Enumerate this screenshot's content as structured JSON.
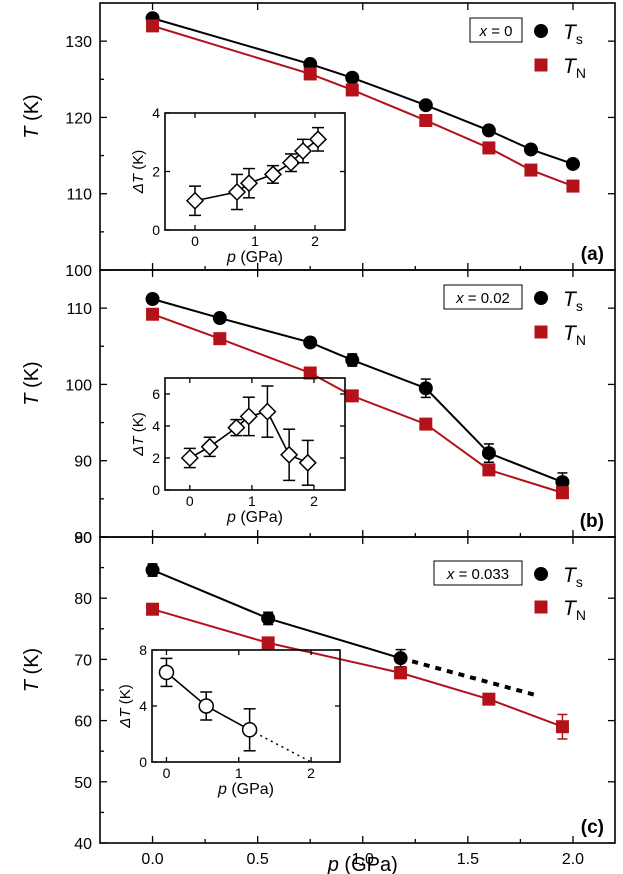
{
  "colors": {
    "ts": "#000000",
    "tn": "#b3121a",
    "tn_line": "#b3121a"
  },
  "axis": {
    "xlabel_var": "p",
    "xlabel_unit": " (GPa)",
    "ylabel_var": "T",
    "ylabel_unit": " (K)",
    "x_ticks": [
      "0.0",
      "0.5",
      "1.0",
      "1.5",
      "2.0"
    ]
  },
  "legend": {
    "ts_main": "T",
    "ts_sub": "s",
    "tn_main": "T",
    "tn_sub": "N"
  },
  "chart_data": [
    {
      "type": "scatter",
      "panel_label": "(a)",
      "composition_var": "x",
      "composition_value": " = 0",
      "xlim": [
        -0.25,
        2.2
      ],
      "ylim": [
        100,
        135
      ],
      "y_ticks": [
        100,
        110,
        120,
        130
      ],
      "series": [
        {
          "name": "Ts",
          "x": [
            0.0,
            0.75,
            0.95,
            1.3,
            1.6,
            1.8,
            2.0
          ],
          "y": [
            133.0,
            127.0,
            125.2,
            121.6,
            118.3,
            115.8,
            113.9
          ]
        },
        {
          "name": "TN",
          "x": [
            0.0,
            0.75,
            0.95,
            1.3,
            1.6,
            1.8,
            2.0
          ],
          "y": [
            132.0,
            125.7,
            123.6,
            119.6,
            116.0,
            113.1,
            111.0
          ]
        }
      ],
      "inset": {
        "xlabel_var": "p",
        "xlabel_unit": " (GPa)",
        "ylabel_var": "ΔT",
        "ylabel_unit": " (K)",
        "xlim": [
          -0.5,
          2.5
        ],
        "ylim": [
          0,
          4
        ],
        "x_ticks": [
          0,
          1,
          2
        ],
        "y_ticks": [
          0,
          2,
          4
        ],
        "x": [
          0.0,
          0.7,
          0.9,
          1.3,
          1.6,
          1.8,
          2.05
        ],
        "y": [
          1.0,
          1.3,
          1.6,
          1.9,
          2.3,
          2.7,
          3.1
        ],
        "err": [
          0.5,
          0.6,
          0.5,
          0.3,
          0.3,
          0.4,
          0.4
        ]
      }
    },
    {
      "type": "scatter",
      "panel_label": "(b)",
      "composition_var": "x",
      "composition_value": " = 0.02",
      "xlim": [
        -0.25,
        2.2
      ],
      "ylim": [
        80,
        115
      ],
      "y_ticks": [
        80,
        90,
        100,
        110
      ],
      "series": [
        {
          "name": "Ts",
          "x": [
            0.0,
            0.32,
            0.75,
            0.95,
            1.3,
            1.6,
            1.95
          ],
          "y": [
            111.2,
            108.7,
            105.5,
            103.2,
            99.5,
            91.0,
            87.2
          ],
          "err": [
            0.5,
            0.5,
            0.6,
            0.8,
            1.2,
            1.2,
            1.2
          ]
        },
        {
          "name": "TN",
          "x": [
            0.0,
            0.32,
            0.75,
            0.95,
            1.3,
            1.6,
            1.95
          ],
          "y": [
            109.2,
            106.0,
            101.5,
            98.5,
            94.8,
            88.8,
            85.8
          ]
        }
      ],
      "inset": {
        "xlabel_var": "p",
        "xlabel_unit": " (GPa)",
        "ylabel_var": "ΔT",
        "ylabel_unit": " (K)",
        "xlim": [
          -0.4,
          2.5
        ],
        "ylim": [
          0,
          7
        ],
        "x_ticks": [
          0,
          1,
          2
        ],
        "y_ticks": [
          0,
          2,
          4,
          6
        ],
        "x": [
          0.0,
          0.32,
          0.75,
          0.95,
          1.25,
          1.6,
          1.9
        ],
        "y": [
          2.0,
          2.7,
          3.9,
          4.6,
          4.9,
          2.2,
          1.7
        ],
        "err": [
          0.6,
          0.6,
          0.5,
          1.2,
          1.6,
          1.6,
          1.4
        ]
      }
    },
    {
      "type": "scatter",
      "panel_label": "(c)",
      "composition_var": "x",
      "composition_value": " = 0.033",
      "xlim": [
        -0.25,
        2.2
      ],
      "ylim": [
        40,
        90
      ],
      "y_ticks": [
        40,
        50,
        60,
        70,
        80,
        90
      ],
      "series": [
        {
          "name": "Ts",
          "x": [
            0.0,
            0.55,
            1.18
          ],
          "y": [
            84.6,
            76.7,
            70.2
          ],
          "err": [
            1.0,
            1.0,
            1.4
          ]
        },
        {
          "name": "TN",
          "x": [
            0.0,
            0.55,
            1.18,
            1.6,
            1.95
          ],
          "y": [
            78.2,
            72.7,
            67.8,
            63.5,
            59.0
          ],
          "err": [
            0,
            0,
            0,
            0,
            2.0
          ]
        }
      ],
      "extrapolation": {
        "x": [
          1.18,
          1.82
        ],
        "y": [
          70.2,
          64.2
        ]
      },
      "inset": {
        "xlabel_var": "p",
        "xlabel_unit": " (GPa)",
        "ylabel_var": "ΔT",
        "ylabel_unit": " (K)",
        "xlim": [
          -0.2,
          2.4
        ],
        "ylim": [
          0,
          8
        ],
        "x_ticks": [
          0,
          1,
          2
        ],
        "y_ticks": [
          0,
          4,
          8
        ],
        "x": [
          0.0,
          0.55,
          1.15
        ],
        "y": [
          6.4,
          4.0,
          2.3
        ],
        "err": [
          1.0,
          1.0,
          1.5
        ],
        "extrapolation": {
          "x": [
            1.15,
            2.0
          ],
          "y": [
            2.3,
            0.0
          ]
        }
      }
    }
  ]
}
